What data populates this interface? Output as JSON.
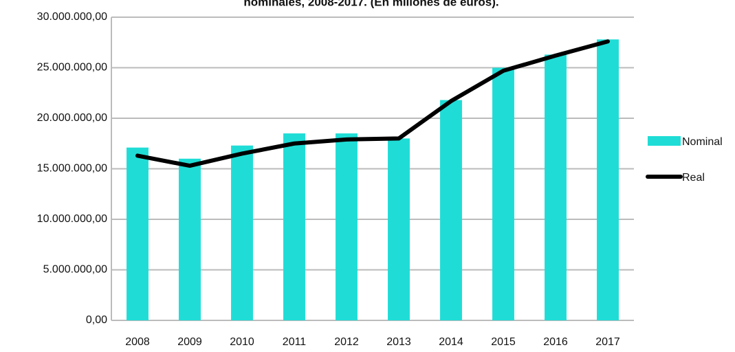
{
  "chart_data": {
    "type": "bar",
    "title": "nominales, 2008-2017. (En millones de euros).",
    "categories": [
      "2008",
      "2009",
      "2010",
      "2011",
      "2012",
      "2013",
      "2014",
      "2015",
      "2016",
      "2017"
    ],
    "series": [
      {
        "name": "Nominal",
        "type": "bar",
        "color": "#1fddd6",
        "values": [
          17100000,
          16000000,
          17300000,
          18500000,
          18500000,
          18000000,
          21800000,
          25000000,
          26300000,
          27800000
        ]
      },
      {
        "name": "Real",
        "type": "line",
        "color": "#000000",
        "values": [
          16300000,
          15300000,
          16500000,
          17500000,
          17900000,
          18000000,
          21700000,
          24700000,
          26200000,
          27600000
        ]
      }
    ],
    "ylim": [
      0,
      30000000
    ],
    "yticks": [
      {
        "value": 0,
        "label": "0,00"
      },
      {
        "value": 5000000,
        "label": "5.000.000,00"
      },
      {
        "value": 10000000,
        "label": "10.000.000,00"
      },
      {
        "value": 15000000,
        "label": "15.000.000,00"
      },
      {
        "value": 20000000,
        "label": "20.000.000,00"
      },
      {
        "value": 25000000,
        "label": "25.000.000,00"
      },
      {
        "value": 30000000,
        "label": "30.000.000,00"
      }
    ],
    "grid": true,
    "legend": "right"
  }
}
